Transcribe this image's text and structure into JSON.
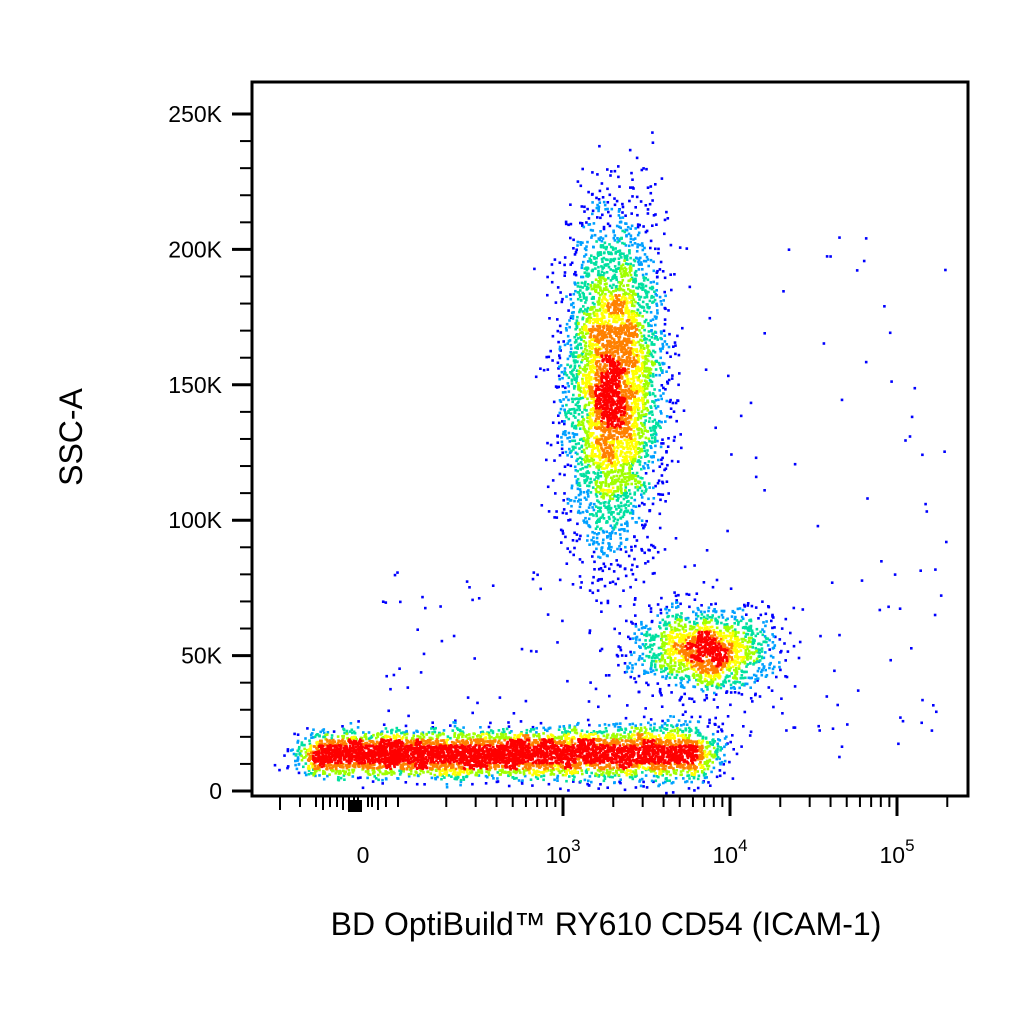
{
  "chart_data": {
    "type": "scatter",
    "style": "density-colored dot plot",
    "xlabel": "BD OptiBuild™ RY610 CD54 (ICAM-1)",
    "ylabel": "SSC-A",
    "x_scale": "biexponential",
    "y_scale": "linear",
    "ylim": [
      0,
      262144
    ],
    "x_ticks": [
      {
        "label": "0",
        "value": 0
      },
      {
        "label": "10",
        "exp": "3",
        "value": 1000
      },
      {
        "label": "10",
        "exp": "4",
        "value": 10000
      },
      {
        "label": "10",
        "exp": "5",
        "value": 100000
      }
    ],
    "y_ticks": [
      {
        "label": "0",
        "value": 0
      },
      {
        "label": "50K",
        "value": 50000
      },
      {
        "label": "100K",
        "value": 100000
      },
      {
        "label": "150K",
        "value": 150000
      },
      {
        "label": "200K",
        "value": 200000
      },
      {
        "label": "250K",
        "value": 250000
      }
    ],
    "density_colors": [
      "#0000ff",
      "#00a0ff",
      "#00e0a0",
      "#a0ff00",
      "#ffff00",
      "#ff8000",
      "#ff0000"
    ],
    "populations": [
      {
        "name": "",
        "x_center_log10": 3.3,
        "x_spread_log10": 0.15,
        "y_center": 150000,
        "y_spread": 30000
      },
      {
        "name": "",
        "x_center_log10": 3.85,
        "x_spread_log10": 0.2,
        "y_center": 52000,
        "y_spread": 8000
      },
      {
        "name": "",
        "x_center_log10": 2.7,
        "x_spread_log10": 0.55,
        "y_center": 14000,
        "y_spread": 4500
      }
    ]
  }
}
